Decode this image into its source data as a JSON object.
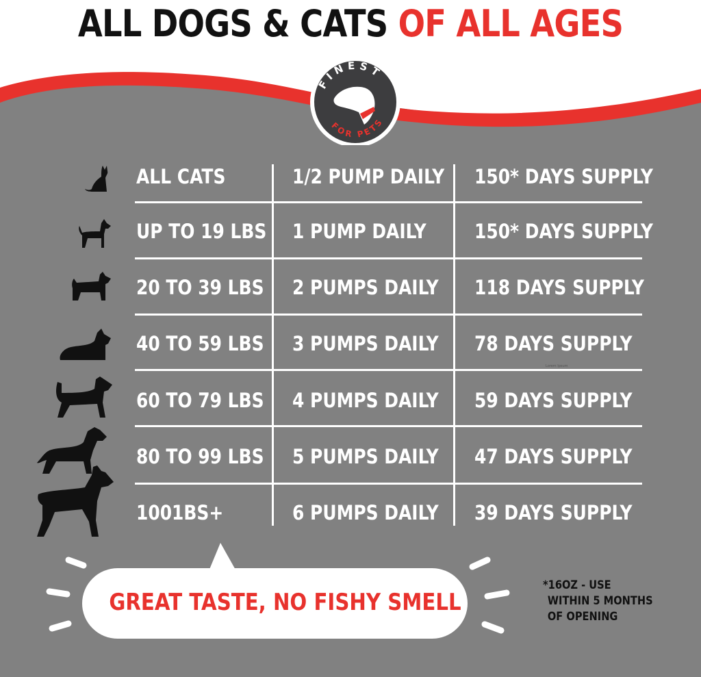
{
  "title": {
    "part1": "ALL DOGS & CATS",
    "part2": "OF ALL AGES"
  },
  "logo": {
    "top_text": "FINEST",
    "bottom_text": "FOR PETS"
  },
  "colors": {
    "accent_red": "#e8322d",
    "background_gray": "#818181",
    "text_white": "#ffffff",
    "logo_dark": "#3d3d3f"
  },
  "table": {
    "rows": [
      {
        "icon": "cat-silhouette-icon",
        "size": "ALL CATS",
        "dose": "1/2 PUMP DAILY",
        "supply": "150* DAYS SUPPLY"
      },
      {
        "icon": "small-dog-silhouette-icon",
        "size": "UP TO 19 LBS",
        "dose": "1 PUMP DAILY",
        "supply": "150* DAYS SUPPLY"
      },
      {
        "icon": "terrier-silhouette-icon",
        "size": "20 TO 39 LBS",
        "dose": "2 PUMPS DAILY",
        "supply": "118 DAYS SUPPLY"
      },
      {
        "icon": "scottie-silhouette-icon",
        "size": "40 TO 59 LBS",
        "dose": "3 PUMPS DAILY",
        "supply": "78 DAYS SUPPLY"
      },
      {
        "icon": "airedale-silhouette-icon",
        "size": "60 TO 79 LBS",
        "dose": "4 PUMPS DAILY",
        "supply": "59 DAYS SUPPLY"
      },
      {
        "icon": "retriever-silhouette-icon",
        "size": "80 TO 99 LBS",
        "dose": "5 PUMPS DAILY",
        "supply": "47 DAYS SUPPLY"
      },
      {
        "icon": "large-dog-silhouette-icon",
        "size": "1001BS+",
        "dose": "6 PUMPS DAILY",
        "supply": "39 DAYS SUPPLY"
      }
    ]
  },
  "watermark": "Lorem Ipsum",
  "bubble": {
    "text": "GREAT TASTE, NO FISHY SMELL"
  },
  "footnote": {
    "lines": [
      "*16OZ - USE",
      "WITHIN 5 MONTHS",
      "OF OPENING"
    ]
  }
}
